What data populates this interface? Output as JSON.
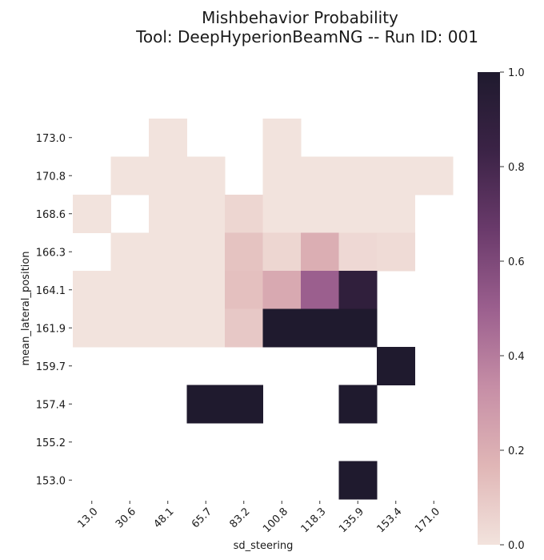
{
  "chart_data": {
    "type": "heatmap",
    "title_line1": "Mishbehavior Probability",
    "title_line2": "Tool: DeepHyperionBeamNG -- Run ID: 001",
    "xlabel": "sd_steering",
    "ylabel": "mean_lateral_position",
    "x_categories": [
      "13.0",
      "30.6",
      "48.1",
      "65.7",
      "83.2",
      "100.8",
      "118.3",
      "135.9",
      "153.4",
      "171.0"
    ],
    "y_categories": [
      "173.0",
      "170.8",
      "168.6",
      "166.3",
      "164.1",
      "161.9",
      "159.7",
      "157.4",
      "155.2",
      "153.0"
    ],
    "values": [
      [
        null,
        null,
        0.0,
        null,
        null,
        0.0,
        null,
        null,
        null,
        null
      ],
      [
        null,
        0.0,
        0.0,
        0.0,
        null,
        0.0,
        0.0,
        0.0,
        0.0,
        0.0
      ],
      [
        0.0,
        null,
        0.0,
        0.0,
        0.05,
        0.0,
        0.0,
        0.0,
        0.0,
        null
      ],
      [
        null,
        0.0,
        0.0,
        0.0,
        0.12,
        0.05,
        0.2,
        0.04,
        0.03,
        null
      ],
      [
        0.0,
        0.0,
        0.0,
        0.0,
        0.13,
        0.22,
        0.5,
        0.9,
        null,
        null
      ],
      [
        0.0,
        0.0,
        0.0,
        0.0,
        0.1,
        1.0,
        1.0,
        1.0,
        null,
        null
      ],
      [
        null,
        null,
        null,
        null,
        null,
        null,
        null,
        null,
        1.0,
        null
      ],
      [
        null,
        null,
        null,
        1.0,
        1.0,
        null,
        null,
        1.0,
        null,
        null
      ],
      [
        null,
        null,
        null,
        null,
        null,
        null,
        null,
        null,
        null,
        null
      ],
      [
        null,
        null,
        null,
        null,
        null,
        null,
        null,
        1.0,
        null,
        null
      ]
    ],
    "colorbar": {
      "vmin": 0.0,
      "vmax": 1.0,
      "ticks": [
        "0.0",
        "0.2",
        "0.4",
        "0.6",
        "0.8",
        "1.0"
      ],
      "colors": [
        "#f2e3dd",
        "#e0b6b6",
        "#c68ea6",
        "#9b5f8e",
        "#6a3a6b",
        "#3b2346",
        "#1f1a2e"
      ]
    }
  }
}
